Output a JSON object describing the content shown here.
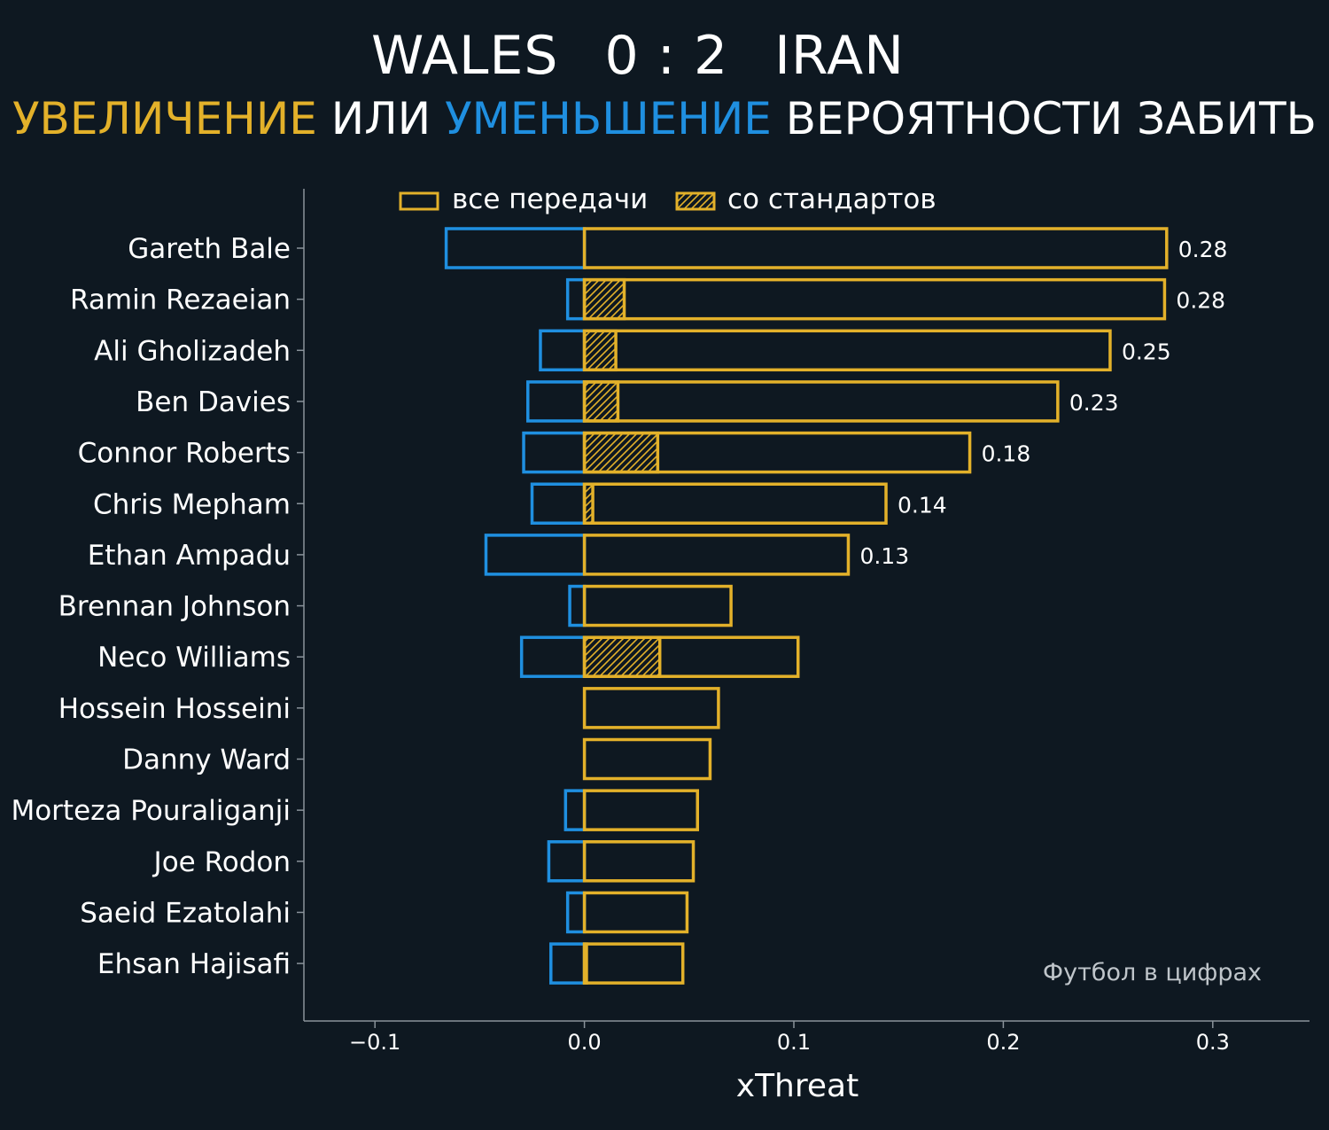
{
  "header": {
    "team_home": "WALES",
    "score": "0 : 2",
    "team_away": "IRAN",
    "subtitle_part1": "УВЕЛИЧЕНИЕ",
    "subtitle_part2": " ИЛИ ",
    "subtitle_part3": "УМЕНЬШЕНИЕ",
    "subtitle_part4": " ВЕРОЯТНОСТИ ЗАБИТЬ"
  },
  "colors": {
    "background": "#0e1821",
    "increase": "#e3b12a",
    "decrease": "#1f8fe0",
    "axis": "#8a939b",
    "text": "#ffffff",
    "watermark": "#bfc5ca"
  },
  "watermark": "Футбол в цифрах",
  "chart_data": {
    "type": "bar",
    "orientation": "horizontal",
    "xlabel": "xThreat",
    "xlim": [
      -0.135,
      0.345
    ],
    "xticks": [
      -0.1,
      0.0,
      0.1,
      0.2,
      0.3
    ],
    "xtick_labels": [
      "−0.1",
      "0.0",
      "0.1",
      "0.2",
      "0.3"
    ],
    "legend_position": "top",
    "legend": [
      "все передачи",
      "со стандартов"
    ],
    "categories": [
      "Gareth Bale",
      "Ramin Rezaeian",
      "Ali Gholizadeh",
      "Ben Davies",
      "Connor Roberts",
      "Chris Mepham",
      "Ethan Ampadu",
      "Brennan Johnson",
      "Neco Williams",
      "Hossein Hosseini",
      "Danny Ward",
      "Morteza Pouraliganji",
      "Joe Rodon",
      "Saeid Ezatolahi",
      "Ehsan Hajisafi"
    ],
    "series": [
      {
        "name": "все передачи",
        "values": [
          0.278,
          0.277,
          0.251,
          0.226,
          0.184,
          0.144,
          0.126,
          0.07,
          0.102,
          0.064,
          0.06,
          0.054,
          0.052,
          0.049,
          0.047
        ]
      },
      {
        "name": "со стандартов",
        "values": [
          0.0,
          0.019,
          0.015,
          0.016,
          0.035,
          0.004,
          0.0,
          0.0,
          0.036,
          0.0,
          0.0,
          0.0,
          0.0,
          0.0,
          0.001
        ]
      },
      {
        "values": [
          -0.066,
          -0.008,
          -0.021,
          -0.027,
          -0.029,
          -0.025,
          -0.047,
          -0.007,
          -0.03,
          0.0,
          0.0,
          -0.009,
          -0.017,
          -0.008,
          -0.016
        ]
      }
    ],
    "data_labels": [
      "0.28",
      "0.28",
      "0.25",
      "0.23",
      "0.18",
      "0.14",
      "0.13",
      "",
      "",
      "",
      "",
      "",
      "",
      "",
      ""
    ]
  }
}
